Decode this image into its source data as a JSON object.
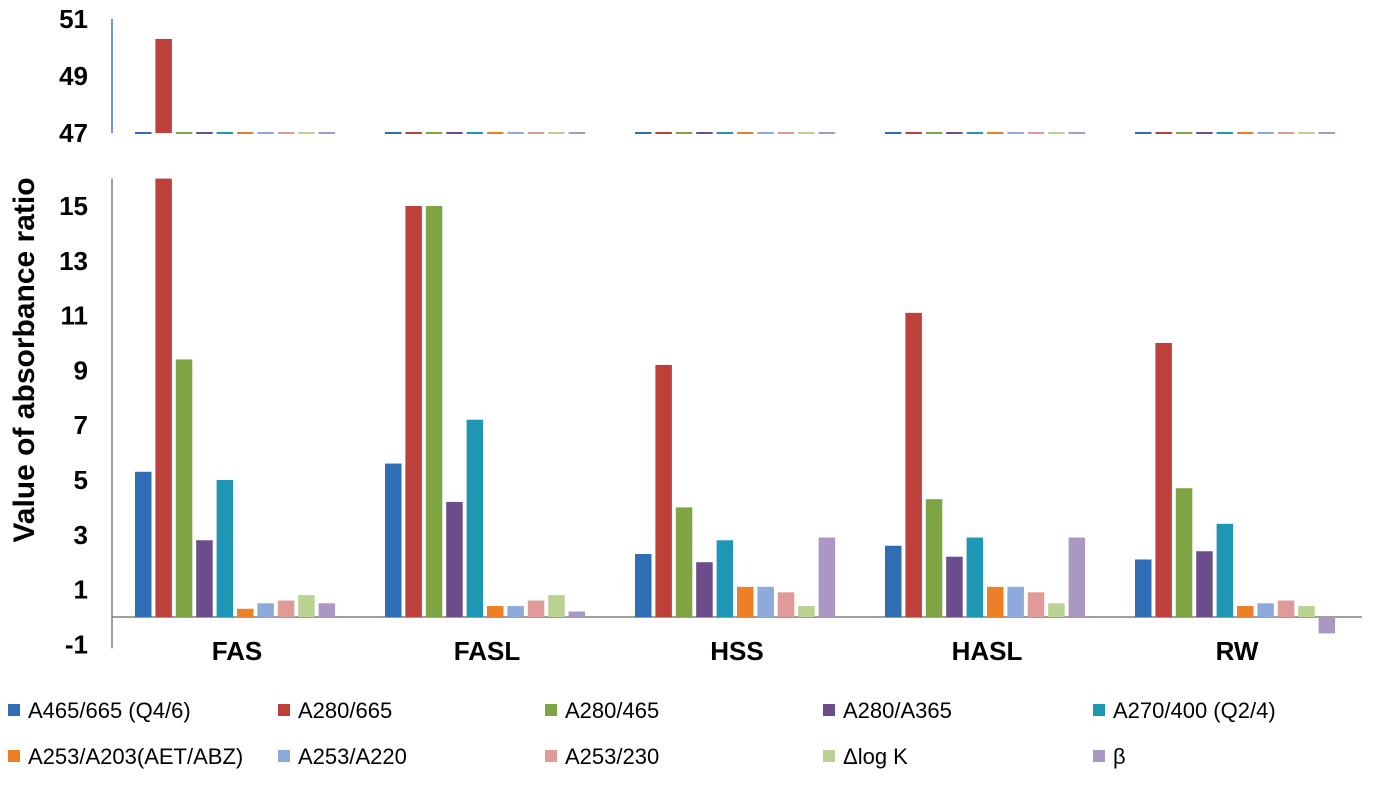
{
  "chart_data": {
    "type": "bar",
    "ylabel": "Value of absorbance ratio",
    "categories": [
      "FAS",
      "FASL",
      "HSS",
      "HASL",
      "RW"
    ],
    "axis_break": {
      "upper_range": [
        47,
        51
      ],
      "upper_ticks": [
        "51",
        "49",
        "47"
      ],
      "lower_range": [
        -1,
        16
      ],
      "lower_ticks": [
        "15",
        "13",
        "11",
        "9",
        "7",
        "5",
        "3",
        "1",
        "-1"
      ]
    },
    "legend_placement": "bottom",
    "series": [
      {
        "name": "A465/665 (Q4/6)",
        "color": "#2F6DB5",
        "values": [
          5.3,
          5.6,
          2.3,
          2.6,
          2.1
        ]
      },
      {
        "name": "A280/665",
        "color": "#BE403B",
        "values": [
          50.3,
          15.0,
          9.2,
          11.1,
          10.0
        ]
      },
      {
        "name": "A280/465",
        "color": "#7FA443",
        "values": [
          9.4,
          15.0,
          4.0,
          4.3,
          4.7
        ]
      },
      {
        "name": "A280/A365",
        "color": "#6B4D8B",
        "values": [
          2.8,
          4.2,
          2.0,
          2.2,
          2.4
        ]
      },
      {
        "name": "A270/400 (Q2/4)",
        "color": "#1E97B4",
        "values": [
          5.0,
          7.2,
          2.8,
          2.9,
          3.4
        ]
      },
      {
        "name": "A253/A203(AET/ABZ)",
        "color": "#ED8027",
        "values": [
          0.3,
          0.4,
          1.1,
          1.1,
          0.4
        ]
      },
      {
        "name": "A253/A220",
        "color": "#8EA9DB",
        "values": [
          0.5,
          0.4,
          1.1,
          1.1,
          0.5
        ]
      },
      {
        "name": "A253/230",
        "color": "#E09A97",
        "values": [
          0.6,
          0.6,
          0.9,
          0.9,
          0.6
        ]
      },
      {
        "name": "Δlog K",
        "color": "#B9D292",
        "values": [
          0.8,
          0.8,
          0.4,
          0.5,
          0.4
        ]
      },
      {
        "name": "β",
        "color": "#AA97C3",
        "values": [
          0.5,
          0.2,
          2.9,
          2.9,
          -0.6
        ]
      }
    ]
  }
}
